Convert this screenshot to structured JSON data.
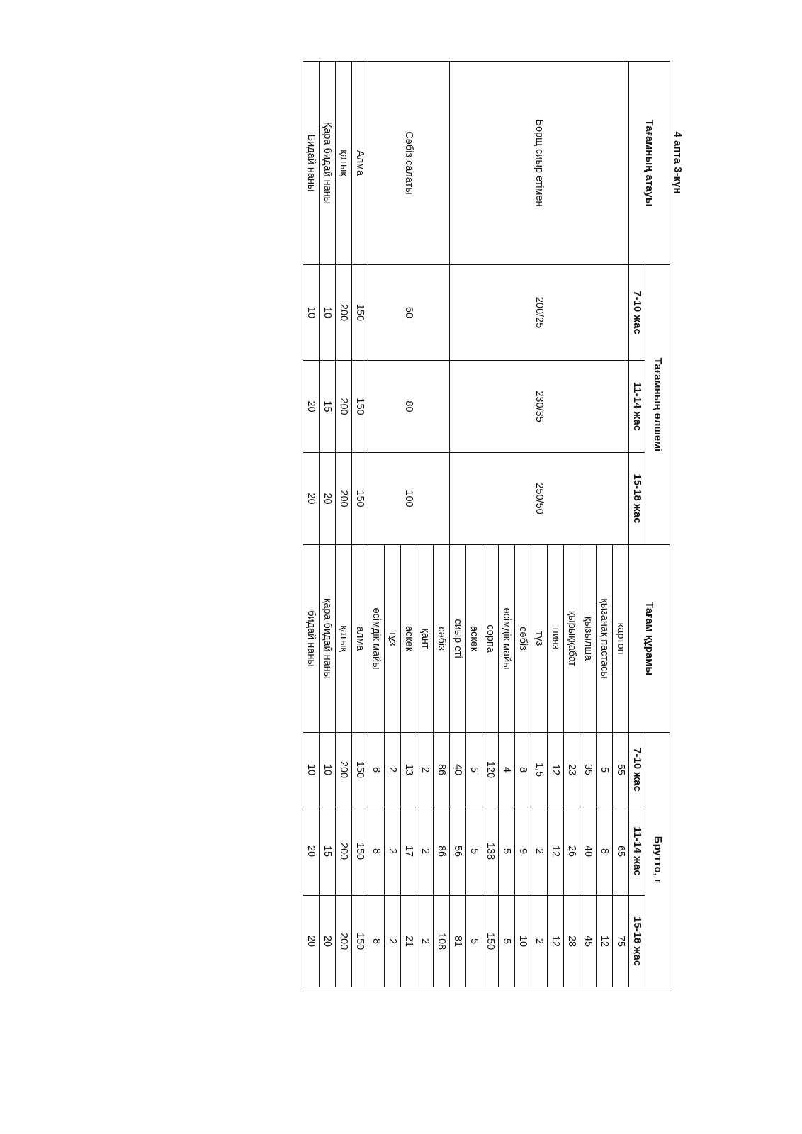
{
  "title": "4 апта 3-күн",
  "headers": {
    "dish_name": "Тағамның атауы",
    "portion_size": "Тағамның өлшемі",
    "composition": "Тағам құрамы",
    "brutto": "Брутто, г",
    "age_groups": [
      "7-10 жас",
      "11-14 жас",
      "15-18 жас"
    ]
  },
  "dishes": [
    {
      "name": "Борщ сиыр етімен",
      "sizes": [
        "200/25",
        "230/35",
        "250/50"
      ],
      "ingredients": [
        {
          "name": "картоп",
          "brutto": [
            "55",
            "65",
            "75"
          ]
        },
        {
          "name": "қызанақ пастасы",
          "brutto": [
            "5",
            "8",
            "12"
          ]
        },
        {
          "name": "қызылша",
          "brutto": [
            "35",
            "40",
            "45"
          ]
        },
        {
          "name": "қырыққабат",
          "brutto": [
            "23",
            "26",
            "28"
          ]
        },
        {
          "name": "пияз",
          "brutto": [
            "12",
            "12",
            "12"
          ]
        },
        {
          "name": "тұз",
          "brutto": [
            "1,5",
            "2",
            "2"
          ]
        },
        {
          "name": "сәбіз",
          "brutto": [
            "8",
            "9",
            "10"
          ]
        },
        {
          "name": "өсімдік майы",
          "brutto": [
            "4",
            "5",
            "5"
          ]
        },
        {
          "name": "сорпа",
          "brutto": [
            "120",
            "138",
            "150"
          ]
        },
        {
          "name": "аскөк",
          "brutto": [
            "5",
            "5",
            "5"
          ]
        },
        {
          "name": "сиыр еті",
          "brutto": [
            "40",
            "56",
            "81"
          ]
        }
      ]
    },
    {
      "name": "Сәбіз салаты",
      "sizes": [
        "60",
        "80",
        "100"
      ],
      "ingredients": [
        {
          "name": "сәбіз",
          "brutto": [
            "86",
            "86",
            "108"
          ]
        },
        {
          "name": "қант",
          "brutto": [
            "2",
            "2",
            "2"
          ]
        },
        {
          "name": "аскөк",
          "brutto": [
            "13",
            "17",
            "21"
          ]
        },
        {
          "name": "тұз",
          "brutto": [
            "2",
            "2",
            "2"
          ]
        },
        {
          "name": "өсімдік майы",
          "brutto": [
            "8",
            "8",
            "8"
          ]
        }
      ]
    },
    {
      "name": "Алма",
      "sizes": [
        "150",
        "150",
        "150"
      ],
      "ingredients": [
        {
          "name": "алма",
          "brutto": [
            "150",
            "150",
            "150"
          ]
        }
      ]
    },
    {
      "name": "қатық",
      "sizes": [
        "200",
        "200",
        "200"
      ],
      "ingredients": [
        {
          "name": "қатық",
          "brutto": [
            "200",
            "200",
            "200"
          ]
        }
      ]
    },
    {
      "name": "Қара бидай наны",
      "sizes": [
        "10",
        "15",
        "20"
      ],
      "ingredients": [
        {
          "name": "қара бидай наны",
          "brutto": [
            "10",
            "15",
            "20"
          ]
        }
      ]
    },
    {
      "name": "Бидай наны",
      "sizes": [
        "10",
        "20",
        "20"
      ],
      "ingredients": [
        {
          "name": "бидай наны",
          "brutto": [
            "10",
            "20",
            "20"
          ]
        }
      ]
    }
  ]
}
